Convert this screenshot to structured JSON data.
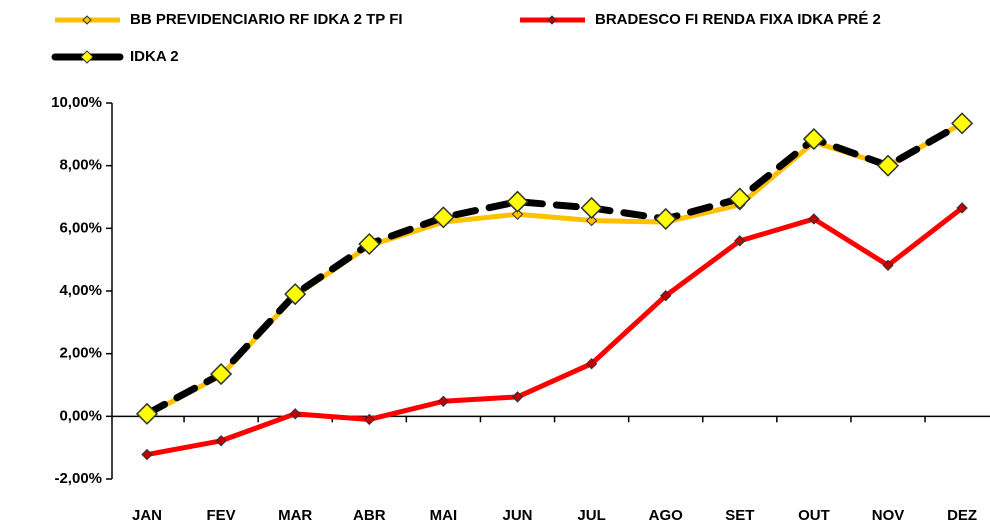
{
  "chart_data": {
    "type": "line",
    "categories": [
      "JAN",
      "FEV",
      "MAR",
      "ABR",
      "MAI",
      "JUN",
      "JUL",
      "AGO",
      "SET",
      "OUT",
      "NOV",
      "DEZ"
    ],
    "series": [
      {
        "name": "BB PREVIDENCIARIO RF IDKA 2 TP FI",
        "color": "#FFC000",
        "marker_color": "#FFC000",
        "marker": "small",
        "dashed": false,
        "values": [
          0.05,
          1.3,
          3.85,
          5.45,
          6.2,
          6.45,
          6.25,
          6.2,
          6.75,
          8.75,
          8.0,
          9.35
        ]
      },
      {
        "name": "BRADESCO FI RENDA FIXA IDKA PRÉ 2",
        "color": "#FF0000",
        "marker_color": "#C00000",
        "marker": "small",
        "dashed": false,
        "values": [
          -1.22,
          -0.78,
          0.08,
          -0.1,
          0.48,
          0.62,
          1.68,
          3.85,
          5.6,
          6.3,
          4.82,
          6.65
        ]
      },
      {
        "name": "IDKA 2",
        "color": "#000000",
        "marker_color": "#FFFF00",
        "marker": "large",
        "dashed": true,
        "values": [
          0.08,
          1.35,
          3.9,
          5.5,
          6.35,
          6.85,
          6.65,
          6.3,
          6.95,
          8.85,
          8.0,
          9.35
        ]
      }
    ],
    "ylim": [
      -2,
      10
    ],
    "yticks": [
      {
        "value": -2,
        "label": "-2,00%"
      },
      {
        "value": 0,
        "label": "0,00%"
      },
      {
        "value": 2,
        "label": "2,00%"
      },
      {
        "value": 4,
        "label": "4,00%"
      },
      {
        "value": 6,
        "label": "6,00%"
      },
      {
        "value": 8,
        "label": "8,00%"
      },
      {
        "value": 10,
        "label": "10,00%"
      }
    ],
    "grid": false
  }
}
